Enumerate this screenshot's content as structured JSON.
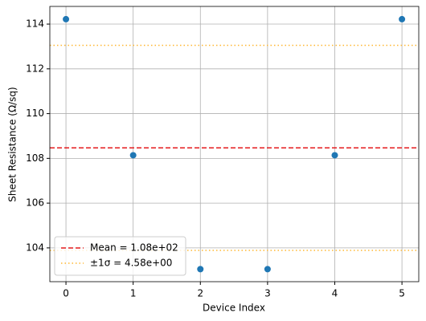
{
  "chart_data": {
    "type": "scatter",
    "x_label": "Device Index",
    "y_label": "Sheet Resistance (Ω/sq)",
    "x": [
      0,
      1,
      2,
      3,
      4,
      5
    ],
    "series": [
      {
        "color": "#1f77b4",
        "values": [
          114.22,
          108.14,
          103.05,
          103.05,
          108.14,
          114.22
        ]
      }
    ],
    "reference_lines": [
      {
        "name": "Mean = 1.08e+02",
        "values": [
          108.47
        ],
        "color": "#e41a1c",
        "dash": "6,3"
      },
      {
        "name": "±1σ = 4.58e+00",
        "values": [
          113.05,
          103.89
        ],
        "color": "#ffb732",
        "dash": "1.5,3"
      }
    ],
    "xlim": [
      -0.24,
      5.25
    ],
    "xticks": [
      0,
      1,
      2,
      3,
      4,
      5
    ],
    "ylim": [
      102.49,
      114.79
    ],
    "yticks": [
      104,
      106,
      108,
      110,
      112,
      114
    ],
    "grid": true,
    "legend": "lower left"
  }
}
